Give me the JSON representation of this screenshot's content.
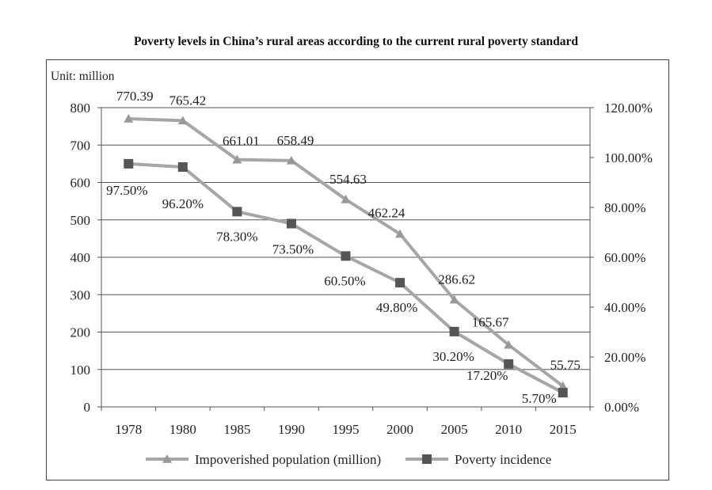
{
  "chart_data": {
    "type": "line",
    "title": "Poverty levels in China’s rural areas according to the current rural poverty standard",
    "unit_label": "Unit: million",
    "categories": [
      "1978",
      "1980",
      "1985",
      "1990",
      "1995",
      "2000",
      "2005",
      "2010",
      "2015"
    ],
    "y_left": {
      "range": [
        0,
        800
      ],
      "ticks": [
        "0",
        "100",
        "200",
        "300",
        "400",
        "500",
        "600",
        "700",
        "800"
      ]
    },
    "y_right": {
      "range": [
        0,
        120
      ],
      "ticks": [
        "0.00%",
        "20.00%",
        "40.00%",
        "60.00%",
        "80.00%",
        "100.00%",
        "120.00%"
      ]
    },
    "grid": true,
    "legend_position": "bottom",
    "series": [
      {
        "name": "Impoverished population (million)",
        "axis": "left",
        "marker": "triangle",
        "color": "#a6a6a6",
        "values": [
          770.39,
          765.42,
          661.01,
          658.49,
          554.63,
          462.24,
          286.62,
          165.67,
          55.75
        ],
        "labels": [
          "770.39",
          "765.42",
          "661.01",
          "658.49",
          "554.63",
          "462.24",
          "286.62",
          "165.67",
          "55.75"
        ]
      },
      {
        "name": "Poverty incidence",
        "axis": "right",
        "marker": "square",
        "color": "#a6a6a6",
        "marker_color": "#555555",
        "values": [
          97.5,
          96.2,
          78.3,
          73.5,
          60.5,
          49.8,
          30.2,
          17.2,
          5.7
        ],
        "labels": [
          "97.50%",
          "96.20%",
          "78.30%",
          "73.50%",
          "60.50%",
          "49.80%",
          "30.20%",
          "17.20%",
          "5.70%"
        ]
      }
    ]
  }
}
